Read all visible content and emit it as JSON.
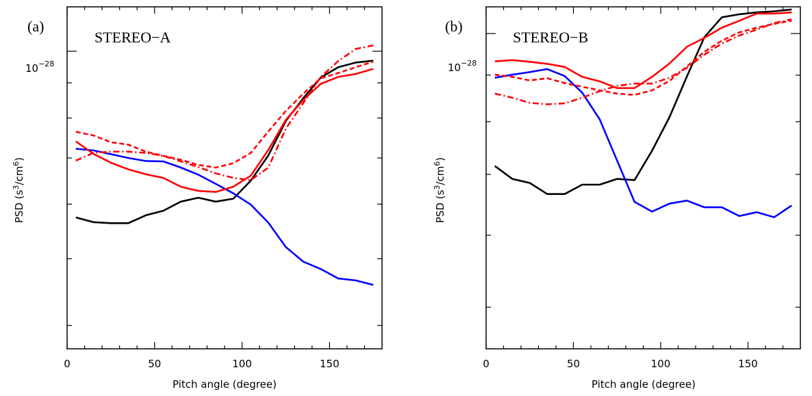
{
  "chart_data": [
    {
      "type": "line",
      "panel_label": "(a)",
      "annotation": "STEREO−A",
      "xlabel": "Pitch angle (degree)",
      "ylabel_base": "PSD (s",
      "ylabel_exp1": "3",
      "ylabel_mid": "/cm",
      "ylabel_exp2": "6",
      "ylabel_tail": ")",
      "ytick_base": "10",
      "ytick_exp": "−28",
      "xlim": [
        0,
        180
      ],
      "xticks": [
        "0",
        "50",
        "100",
        "150"
      ],
      "yscale": "log",
      "ylim": [
        3.7e-29,
        1.16e-28
      ],
      "ytick_value": 1e-28,
      "x": [
        5,
        15,
        25,
        35,
        45,
        55,
        65,
        75,
        85,
        95,
        105,
        115,
        125,
        135,
        145,
        155,
        165,
        175
      ],
      "series": [
        {
          "color": "#000000",
          "dash": "solid",
          "values": [
            5.74e-29,
            5.65e-29,
            5.63e-29,
            5.63e-29,
            5.78e-29,
            5.87e-29,
            6.05e-29,
            6.13e-29,
            6.05e-29,
            6.11e-29,
            6.49e-29,
            7.06e-29,
            7.92e-29,
            8.55e-29,
            9.16e-29,
            9.48e-29,
            9.63e-29,
            9.69e-29
          ]
        },
        {
          "color": "#0000ff",
          "dash": "solid",
          "values": [
            7.22e-29,
            7.18e-29,
            7.09e-29,
            7e-29,
            6.93e-29,
            6.92e-29,
            6.78e-29,
            6.62e-29,
            6.42e-29,
            6.22e-29,
            5.99e-29,
            5.64e-29,
            5.2e-29,
            4.95e-29,
            4.83e-29,
            4.68e-29,
            4.65e-29,
            4.58e-29
          ]
        },
        {
          "color": "#ff0000",
          "dash": "solid",
          "values": [
            7.4e-29,
            7.1e-29,
            6.89e-29,
            6.74e-29,
            6.63e-29,
            6.55e-29,
            6.36e-29,
            6.27e-29,
            6.25e-29,
            6.36e-29,
            6.6e-29,
            7.19e-29,
            7.95e-29,
            8.5e-29,
            8.97e-29,
            9.18e-29,
            9.27e-29,
            9.43e-29
          ]
        },
        {
          "color": "#ff0000",
          "dash": "dashed",
          "values": [
            7.64e-29,
            7.55e-29,
            7.38e-29,
            7.32e-29,
            7.15e-29,
            7.05e-29,
            6.96e-29,
            6.84e-29,
            6.78e-29,
            6.88e-29,
            7.12e-29,
            7.65e-29,
            8.19e-29,
            8.68e-29,
            9.14e-29,
            9.3e-29,
            9.48e-29,
            9.66e-29
          ]
        },
        {
          "color": "#ff0000",
          "dash": "dashdot",
          "values": [
            6.94e-29,
            7.12e-29,
            7.15e-29,
            7.15e-29,
            7.12e-29,
            7.05e-29,
            6.92e-29,
            6.79e-29,
            6.65e-29,
            6.55e-29,
            6.5e-29,
            6.78e-29,
            7.72e-29,
            8.41e-29,
            9.18e-29,
            9.68e-29,
            1.008e-28,
            1.02e-28
          ]
        }
      ]
    },
    {
      "type": "line",
      "panel_label": "(b)",
      "annotation": "STEREO−B",
      "xlabel": "Pitch angle (degree)",
      "ylabel_base": "PSD (s",
      "ylabel_exp1": "3",
      "ylabel_mid": "/cm",
      "ylabel_exp2": "6",
      "ylabel_tail": ")",
      "ytick_base": "10",
      "ytick_exp": "−28",
      "xlim": [
        0,
        180
      ],
      "xticks": [
        "0",
        "50",
        "100",
        "150"
      ],
      "yscale": "log",
      "ylim": [
        4.5e-29,
        1.07e-28
      ],
      "ytick_value": 1e-28,
      "x": [
        5,
        15,
        25,
        35,
        45,
        55,
        65,
        75,
        85,
        95,
        105,
        115,
        125,
        135,
        145,
        155,
        165,
        175
      ],
      "series": [
        {
          "color": "#000000",
          "dash": "solid",
          "values": [
            7.15e-29,
            6.92e-29,
            6.85e-29,
            6.66e-29,
            6.66e-29,
            6.82e-29,
            6.82e-29,
            6.92e-29,
            6.9e-29,
            7.43e-29,
            8.09e-29,
            8.97e-29,
            9.91e-29,
            1.042e-28,
            1.05e-28,
            1.055e-28,
            1.058e-28,
            1.063e-28
          ]
        },
        {
          "color": "#0000ff",
          "dash": "solid",
          "values": [
            8.94e-29,
            9.01e-29,
            9.07e-29,
            9.14e-29,
            8.98e-29,
            8.61e-29,
            8.05e-29,
            7.25e-29,
            6.53e-29,
            6.37e-29,
            6.5e-29,
            6.55e-29,
            6.44e-29,
            6.44e-29,
            6.3e-29,
            6.36e-29,
            6.28e-29,
            6.47e-29
          ]
        },
        {
          "color": "#ff0000",
          "dash": "solid",
          "values": [
            9.32e-29,
            9.35e-29,
            9.31e-29,
            9.26e-29,
            9.19e-29,
            8.96e-29,
            8.86e-29,
            8.71e-29,
            8.71e-29,
            8.96e-29,
            9.27e-29,
            9.67e-29,
            9.89e-29,
            1.015e-28,
            1.033e-28,
            1.052e-28,
            1.052e-28,
            1.055e-28
          ]
        },
        {
          "color": "#ff0000",
          "dash": "dashed",
          "values": [
            9.01e-29,
            8.96e-29,
            8.88e-29,
            8.93e-29,
            8.82e-29,
            8.74e-29,
            8.66e-29,
            8.59e-29,
            8.56e-29,
            8.66e-29,
            8.87e-29,
            9.2e-29,
            9.55e-29,
            9.82e-29,
            1.003e-28,
            1.015e-28,
            1.025e-28,
            1.033e-28
          ]
        },
        {
          "color": "#ff0000",
          "dash": "dashdot",
          "values": [
            8.59e-29,
            8.5e-29,
            8.39e-29,
            8.36e-29,
            8.38e-29,
            8.5e-29,
            8.64e-29,
            8.76e-29,
            8.81e-29,
            8.81e-29,
            8.94e-29,
            9.17e-29,
            9.48e-29,
            9.75e-29,
            9.95e-29,
            1.01e-28,
            1.027e-28,
            1.037e-28
          ]
        }
      ]
    }
  ]
}
